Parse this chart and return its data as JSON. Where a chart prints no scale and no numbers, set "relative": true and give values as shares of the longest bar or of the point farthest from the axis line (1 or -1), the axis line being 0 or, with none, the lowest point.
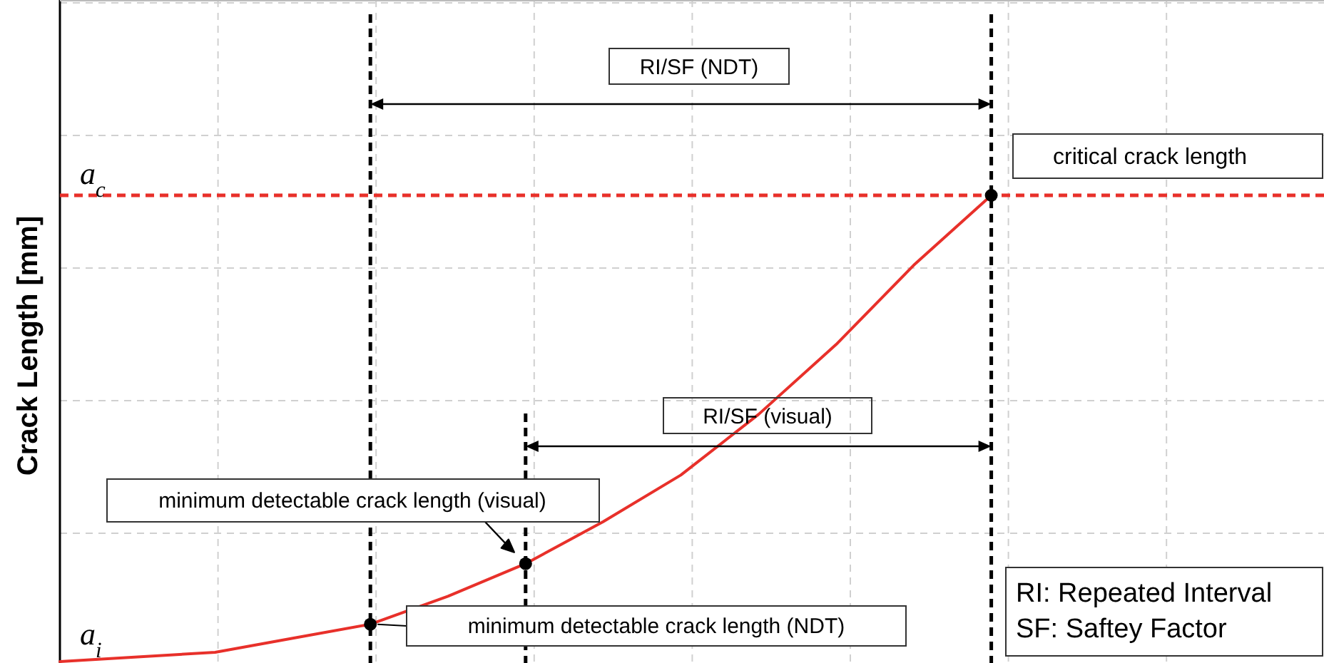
{
  "chart_data": {
    "type": "line",
    "relative": true,
    "ylabel": "Crack Length [mm]",
    "grid": true,
    "categories": [
      null,
      null,
      null,
      null,
      null,
      null,
      null,
      null,
      null,
      null,
      null,
      null,
      null
    ],
    "series": [
      {
        "color": "#e8302a",
        "values": [
          0,
          0.01,
          0.02,
          0.05,
          0.08,
          0.14,
          0.21,
          0.3,
          0.4,
          0.53,
          0.68,
          0.85,
          1
        ]
      }
    ],
    "ref_lines": [
      {
        "axis": "y",
        "value": 1,
        "label": "a$_{c}$",
        "color": "#e8302a",
        "line_style": "dashed"
      }
    ],
    "annotations": [
      "RI/SF (NDT)",
      "RI/SF (visual)",
      "critical crack length",
      "minimum detectable crack length (visual)",
      "minimum detectable crack length (NDT)",
      "RI: Repeated Interval\nSF: Saftey Factor",
      {
        "text": "a$_{i}$",
        "y": 0
      }
    ]
  }
}
